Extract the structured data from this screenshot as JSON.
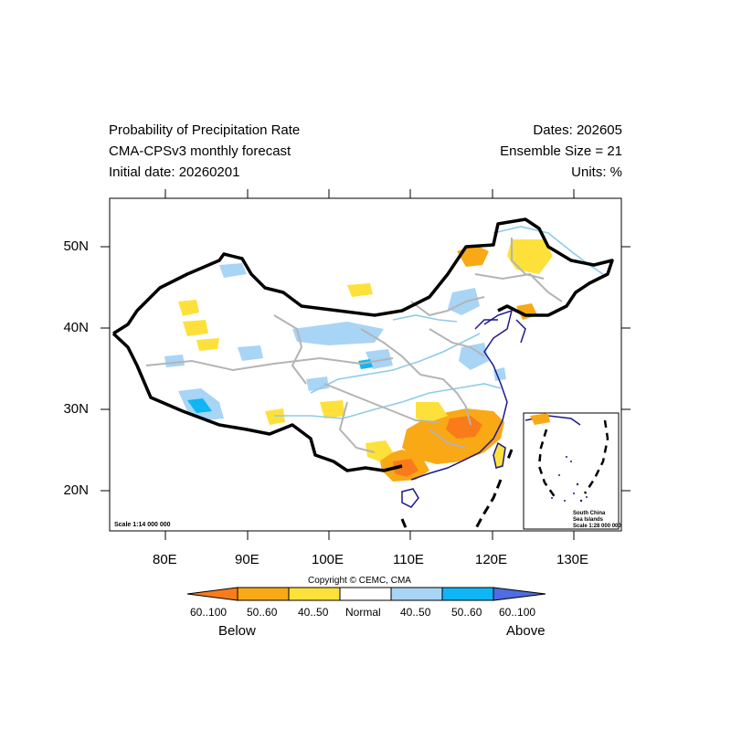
{
  "header": {
    "left": [
      "Probability of Precipitation Rate",
      "CMA-CPSv3 monthly forecast",
      "Initial date: 20260201"
    ],
    "right": [
      "Dates: 202605",
      "Ensemble Size = 21",
      "Units: %"
    ]
  },
  "map": {
    "lat_labels": [
      "50N",
      "40N",
      "30N",
      "20N"
    ],
    "lon_labels": [
      "80E",
      "90E",
      "100E",
      "110E",
      "120E",
      "130E"
    ],
    "lon_range": [
      73,
      135
    ],
    "lat_range": [
      15,
      56
    ],
    "scale_main": "Scale 1:14 000 000",
    "inset_label": [
      "South China",
      "Sea Islands",
      "Scale 1:28 000 000"
    ]
  },
  "copyright": "Copyright © CEMC, CMA",
  "legend": {
    "labels": [
      "60..100",
      "50..60",
      "40..50",
      "Normal",
      "40..50",
      "50..60",
      "60..100"
    ],
    "colors": [
      "#f97b1a",
      "#f9a816",
      "#fde13a",
      "#ffffff",
      "#a8d4f6",
      "#10b5f3",
      "#4d6de3"
    ],
    "below": "Below",
    "above": "Above"
  },
  "colors": {
    "border": "#000000",
    "province": "#b4b4b4",
    "river": "#8ecbe8",
    "coast": "#1a1a8c"
  }
}
